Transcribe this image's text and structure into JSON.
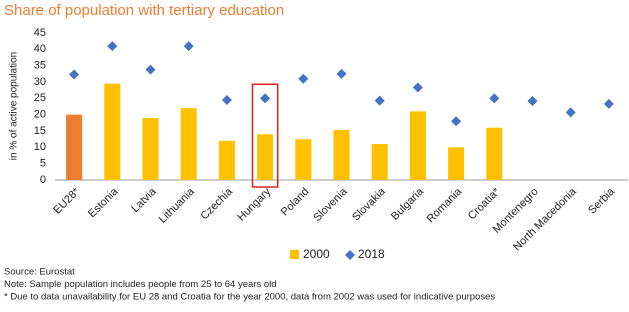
{
  "chart_data": {
    "type": "bar",
    "title": "Share of population with tertiary education",
    "y_label": "in % of active population",
    "categories": [
      "EU28*",
      "Estonia",
      "Latvia",
      "Lithuania",
      "Czechia",
      "Hungary",
      "Poland",
      "Slovenia",
      "Slovakia",
      "Bulgaria",
      "Romania",
      "Croatia*",
      "Montenegro",
      "North Macedonia",
      "Serbia"
    ],
    "series": [
      {
        "name": "2000",
        "type": "bar",
        "color": "#FFC000",
        "colors": [
          "#ED7D31",
          "#FFC000",
          "#FFC000",
          "#FFC000",
          "#FFC000",
          "#FFC000",
          "#FFC000",
          "#FFC000",
          "#FFC000",
          "#FFC000",
          "#FFC000",
          "#FFC000",
          "#FFC000",
          "#FFC000",
          "#FFC000"
        ],
        "values": [
          20,
          29.5,
          19,
          22,
          12,
          14,
          12.5,
          15.3,
          11,
          21,
          10,
          16,
          null,
          null,
          null
        ]
      },
      {
        "name": "2018",
        "type": "diamond",
        "color": "#4472C4",
        "values": [
          32.3,
          41,
          33.8,
          41,
          24.5,
          25,
          31,
          32.5,
          24.3,
          28.3,
          18,
          25,
          24.2,
          20.7,
          23.3
        ]
      }
    ],
    "ylim": [
      0,
      45
    ],
    "yticks": [
      0,
      5,
      10,
      15,
      20,
      25,
      30,
      35,
      40,
      45
    ],
    "grid": false,
    "legend": "bottom",
    "notes": [
      "Source: Eurostat",
      "Note: Sample population includes people from 25 to 64 years old",
      "* Due to data unavailability for EU 28 and Croatia for the year 2000, data from 2002 was used for indicative purposes"
    ]
  }
}
